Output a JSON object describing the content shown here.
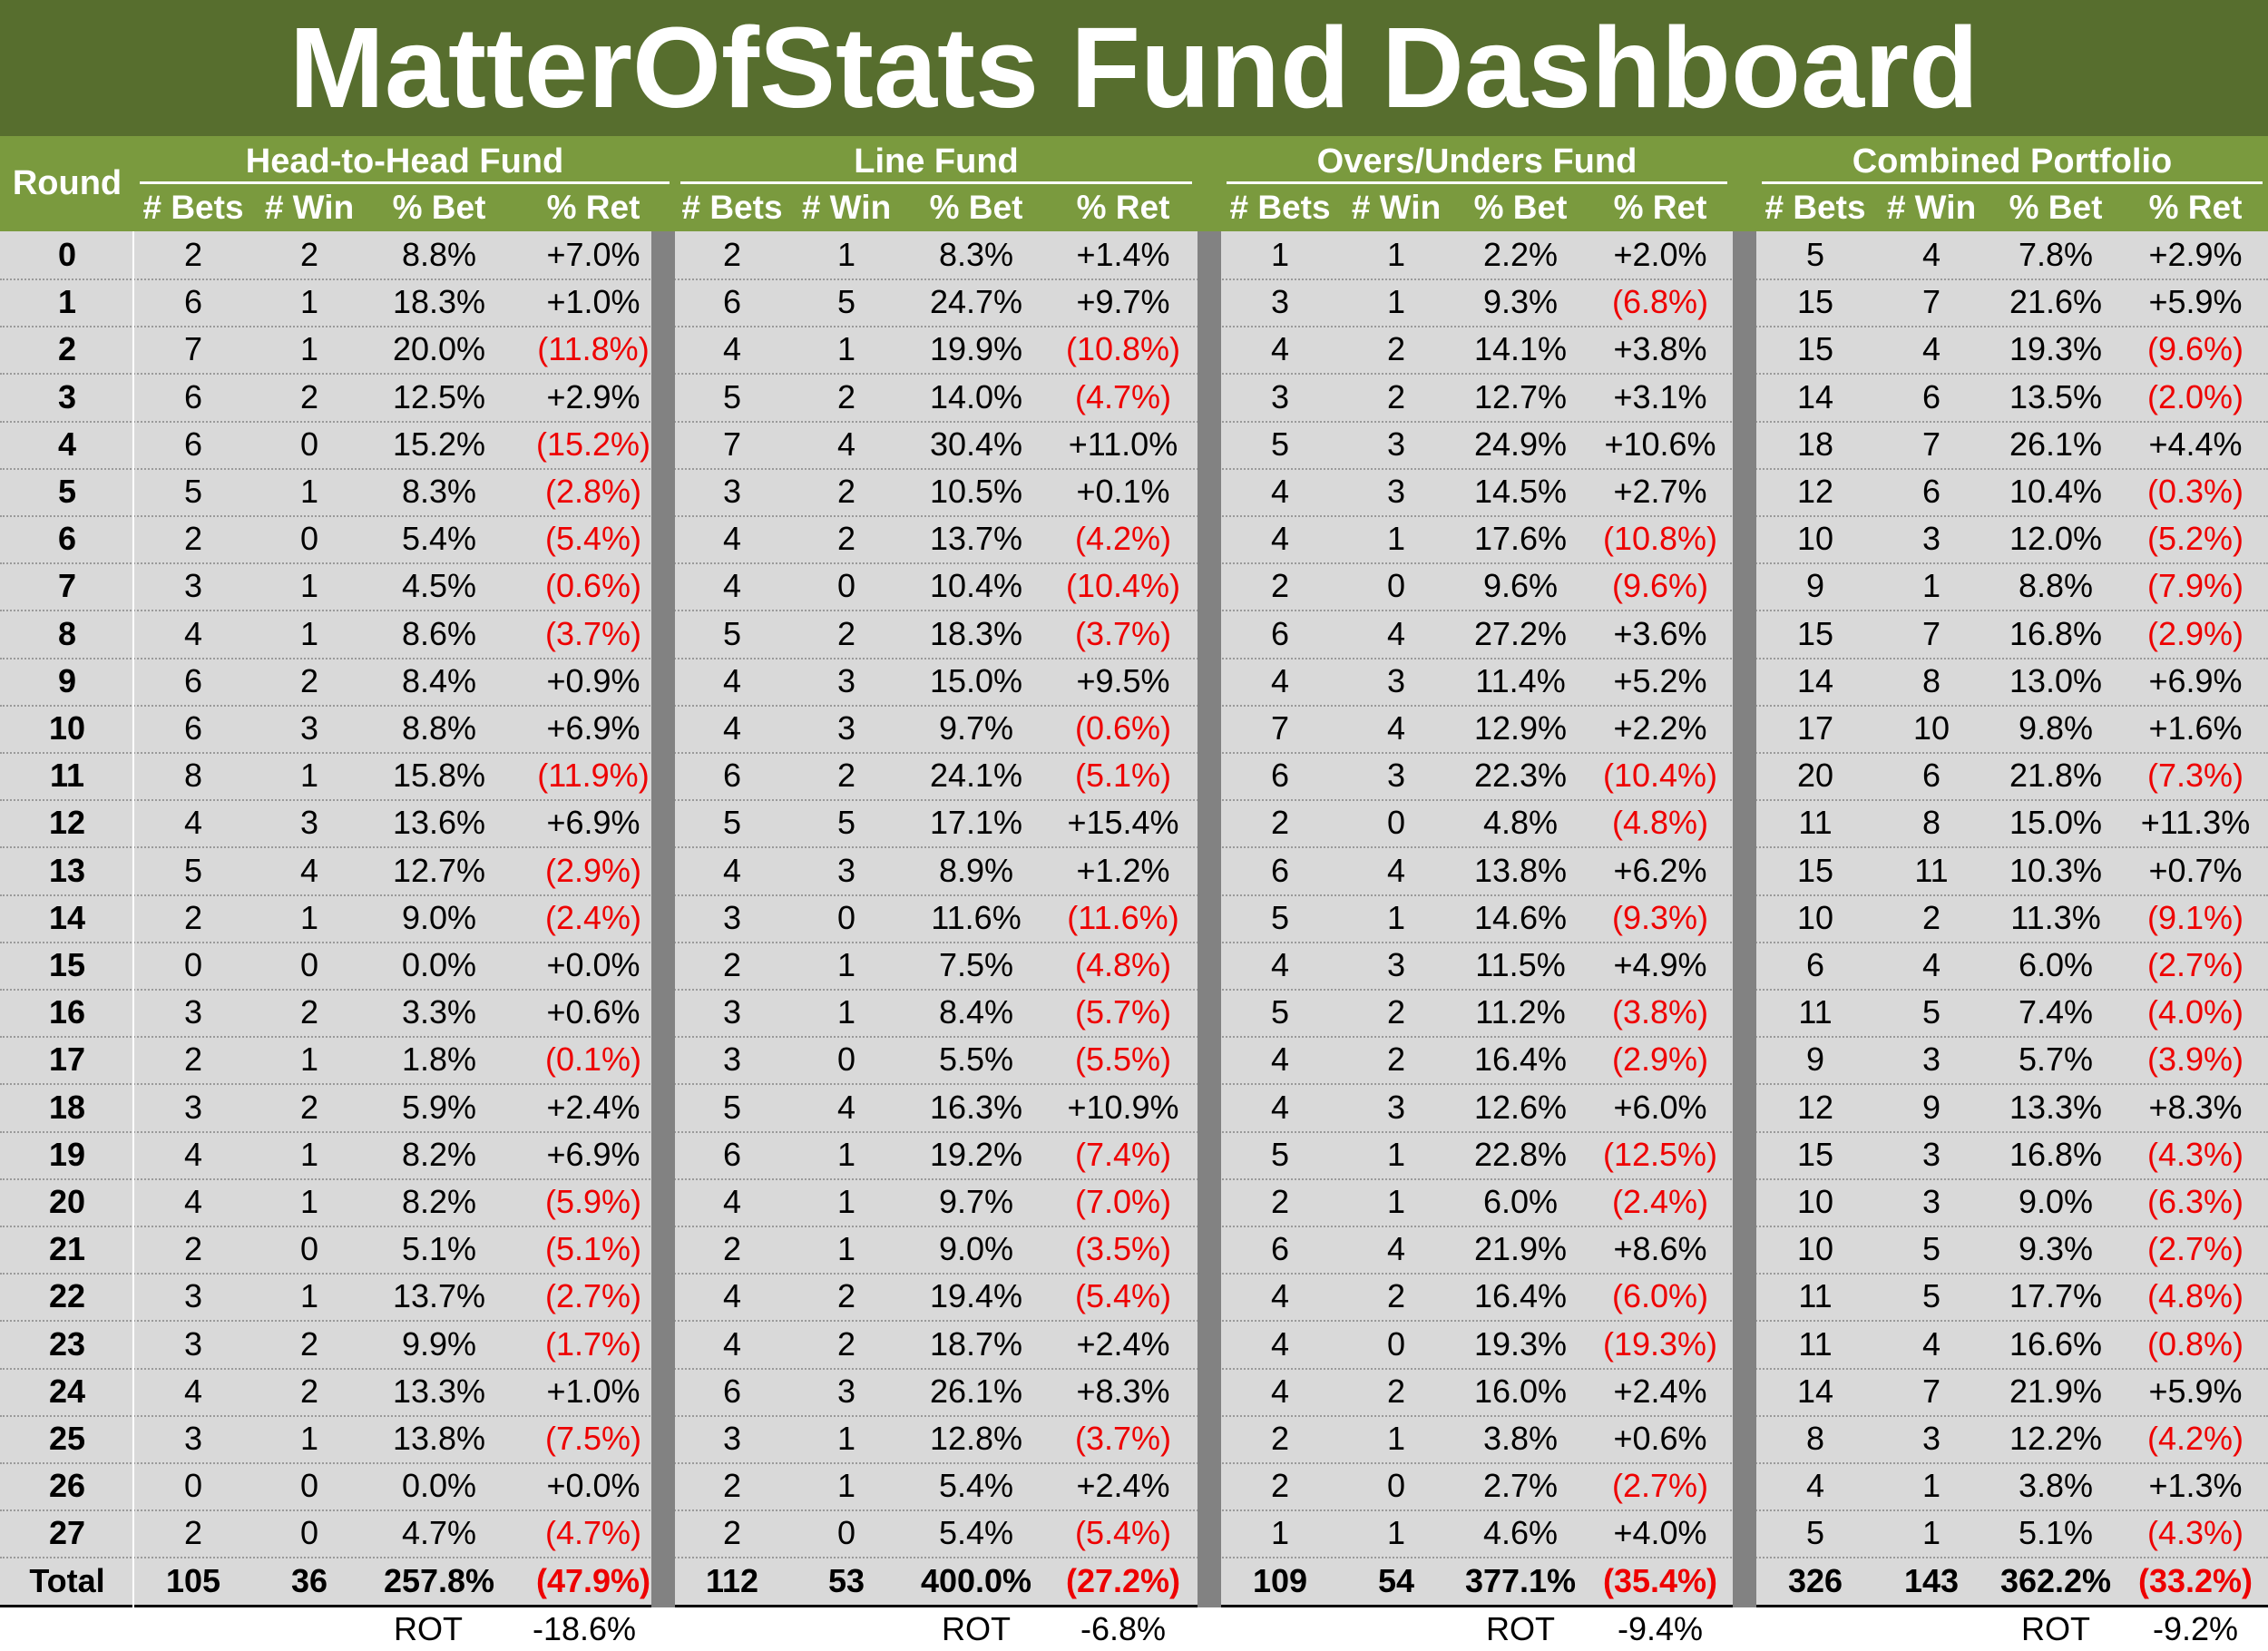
{
  "title": "MatterOfStats Fund Dashboard",
  "round_label": "Round",
  "groups": [
    {
      "name": "Head-to-Head Fund"
    },
    {
      "name": "Line Fund"
    },
    {
      "name": "Overs/Unders Fund"
    },
    {
      "name": "Combined Portfolio"
    }
  ],
  "subheaders": [
    "# Bets",
    "# Win",
    "% Bet",
    "% Ret"
  ],
  "rows": [
    {
      "round": "0",
      "cells": [
        "2",
        "2",
        "8.8%",
        "+7.0%",
        "2",
        "1",
        "8.3%",
        "+1.4%",
        "1",
        "1",
        "2.2%",
        "+2.0%",
        "5",
        "4",
        "7.8%",
        "+2.9%"
      ]
    },
    {
      "round": "1",
      "cells": [
        "6",
        "1",
        "18.3%",
        "+1.0%",
        "6",
        "5",
        "24.7%",
        "+9.7%",
        "3",
        "1",
        "9.3%",
        "(6.8%)",
        "15",
        "7",
        "21.6%",
        "+5.9%"
      ]
    },
    {
      "round": "2",
      "cells": [
        "7",
        "1",
        "20.0%",
        "(11.8%)",
        "4",
        "1",
        "19.9%",
        "(10.8%)",
        "4",
        "2",
        "14.1%",
        "+3.8%",
        "15",
        "4",
        "19.3%",
        "(9.6%)"
      ]
    },
    {
      "round": "3",
      "cells": [
        "6",
        "2",
        "12.5%",
        "+2.9%",
        "5",
        "2",
        "14.0%",
        "(4.7%)",
        "3",
        "2",
        "12.7%",
        "+3.1%",
        "14",
        "6",
        "13.5%",
        "(2.0%)"
      ]
    },
    {
      "round": "4",
      "cells": [
        "6",
        "0",
        "15.2%",
        "(15.2%)",
        "7",
        "4",
        "30.4%",
        "+11.0%",
        "5",
        "3",
        "24.9%",
        "+10.6%",
        "18",
        "7",
        "26.1%",
        "+4.4%"
      ]
    },
    {
      "round": "5",
      "cells": [
        "5",
        "1",
        "8.3%",
        "(2.8%)",
        "3",
        "2",
        "10.5%",
        "+0.1%",
        "4",
        "3",
        "14.5%",
        "+2.7%",
        "12",
        "6",
        "10.4%",
        "(0.3%)"
      ]
    },
    {
      "round": "6",
      "cells": [
        "2",
        "0",
        "5.4%",
        "(5.4%)",
        "4",
        "2",
        "13.7%",
        "(4.2%)",
        "4",
        "1",
        "17.6%",
        "(10.8%)",
        "10",
        "3",
        "12.0%",
        "(5.2%)"
      ]
    },
    {
      "round": "7",
      "cells": [
        "3",
        "1",
        "4.5%",
        "(0.6%)",
        "4",
        "0",
        "10.4%",
        "(10.4%)",
        "2",
        "0",
        "9.6%",
        "(9.6%)",
        "9",
        "1",
        "8.8%",
        "(7.9%)"
      ]
    },
    {
      "round": "8",
      "cells": [
        "4",
        "1",
        "8.6%",
        "(3.7%)",
        "5",
        "2",
        "18.3%",
        "(3.7%)",
        "6",
        "4",
        "27.2%",
        "+3.6%",
        "15",
        "7",
        "16.8%",
        "(2.9%)"
      ]
    },
    {
      "round": "9",
      "cells": [
        "6",
        "2",
        "8.4%",
        "+0.9%",
        "4",
        "3",
        "15.0%",
        "+9.5%",
        "4",
        "3",
        "11.4%",
        "+5.2%",
        "14",
        "8",
        "13.0%",
        "+6.9%"
      ]
    },
    {
      "round": "10",
      "cells": [
        "6",
        "3",
        "8.8%",
        "+6.9%",
        "4",
        "3",
        "9.7%",
        "(0.6%)",
        "7",
        "4",
        "12.9%",
        "+2.2%",
        "17",
        "10",
        "9.8%",
        "+1.6%"
      ]
    },
    {
      "round": "11",
      "cells": [
        "8",
        "1",
        "15.8%",
        "(11.9%)",
        "6",
        "2",
        "24.1%",
        "(5.1%)",
        "6",
        "3",
        "22.3%",
        "(10.4%)",
        "20",
        "6",
        "21.8%",
        "(7.3%)"
      ]
    },
    {
      "round": "12",
      "cells": [
        "4",
        "3",
        "13.6%",
        "+6.9%",
        "5",
        "5",
        "17.1%",
        "+15.4%",
        "2",
        "0",
        "4.8%",
        "(4.8%)",
        "11",
        "8",
        "15.0%",
        "+11.3%"
      ]
    },
    {
      "round": "13",
      "cells": [
        "5",
        "4",
        "12.7%",
        "(2.9%)",
        "4",
        "3",
        "8.9%",
        "+1.2%",
        "6",
        "4",
        "13.8%",
        "+6.2%",
        "15",
        "11",
        "10.3%",
        "+0.7%"
      ]
    },
    {
      "round": "14",
      "cells": [
        "2",
        "1",
        "9.0%",
        "(2.4%)",
        "3",
        "0",
        "11.6%",
        "(11.6%)",
        "5",
        "1",
        "14.6%",
        "(9.3%)",
        "10",
        "2",
        "11.3%",
        "(9.1%)"
      ]
    },
    {
      "round": "15",
      "cells": [
        "0",
        "0",
        "0.0%",
        "+0.0%",
        "2",
        "1",
        "7.5%",
        "(4.8%)",
        "4",
        "3",
        "11.5%",
        "+4.9%",
        "6",
        "4",
        "6.0%",
        "(2.7%)"
      ]
    },
    {
      "round": "16",
      "cells": [
        "3",
        "2",
        "3.3%",
        "+0.6%",
        "3",
        "1",
        "8.4%",
        "(5.7%)",
        "5",
        "2",
        "11.2%",
        "(3.8%)",
        "11",
        "5",
        "7.4%",
        "(4.0%)"
      ]
    },
    {
      "round": "17",
      "cells": [
        "2",
        "1",
        "1.8%",
        "(0.1%)",
        "3",
        "0",
        "5.5%",
        "(5.5%)",
        "4",
        "2",
        "16.4%",
        "(2.9%)",
        "9",
        "3",
        "5.7%",
        "(3.9%)"
      ]
    },
    {
      "round": "18",
      "cells": [
        "3",
        "2",
        "5.9%",
        "+2.4%",
        "5",
        "4",
        "16.3%",
        "+10.9%",
        "4",
        "3",
        "12.6%",
        "+6.0%",
        "12",
        "9",
        "13.3%",
        "+8.3%"
      ]
    },
    {
      "round": "19",
      "cells": [
        "4",
        "1",
        "8.2%",
        "+6.9%",
        "6",
        "1",
        "19.2%",
        "(7.4%)",
        "5",
        "1",
        "22.8%",
        "(12.5%)",
        "15",
        "3",
        "16.8%",
        "(4.3%)"
      ]
    },
    {
      "round": "20",
      "cells": [
        "4",
        "1",
        "8.2%",
        "(5.9%)",
        "4",
        "1",
        "9.7%",
        "(7.0%)",
        "2",
        "1",
        "6.0%",
        "(2.4%)",
        "10",
        "3",
        "9.0%",
        "(6.3%)"
      ]
    },
    {
      "round": "21",
      "cells": [
        "2",
        "0",
        "5.1%",
        "(5.1%)",
        "2",
        "1",
        "9.0%",
        "(3.5%)",
        "6",
        "4",
        "21.9%",
        "+8.6%",
        "10",
        "5",
        "9.3%",
        "(2.7%)"
      ]
    },
    {
      "round": "22",
      "cells": [
        "3",
        "1",
        "13.7%",
        "(2.7%)",
        "4",
        "2",
        "19.4%",
        "(5.4%)",
        "4",
        "2",
        "16.4%",
        "(6.0%)",
        "11",
        "5",
        "17.7%",
        "(4.8%)"
      ]
    },
    {
      "round": "23",
      "cells": [
        "3",
        "2",
        "9.9%",
        "(1.7%)",
        "4",
        "2",
        "18.7%",
        "+2.4%",
        "4",
        "0",
        "19.3%",
        "(19.3%)",
        "11",
        "4",
        "16.6%",
        "(0.8%)"
      ]
    },
    {
      "round": "24",
      "cells": [
        "4",
        "2",
        "13.3%",
        "+1.0%",
        "6",
        "3",
        "26.1%",
        "+8.3%",
        "4",
        "2",
        "16.0%",
        "+2.4%",
        "14",
        "7",
        "21.9%",
        "+5.9%"
      ]
    },
    {
      "round": "25",
      "cells": [
        "3",
        "1",
        "13.8%",
        "(7.5%)",
        "3",
        "1",
        "12.8%",
        "(3.7%)",
        "2",
        "1",
        "3.8%",
        "+0.6%",
        "8",
        "3",
        "12.2%",
        "(4.2%)"
      ]
    },
    {
      "round": "26",
      "cells": [
        "0",
        "0",
        "0.0%",
        "+0.0%",
        "2",
        "1",
        "5.4%",
        "+2.4%",
        "2",
        "0",
        "2.7%",
        "(2.7%)",
        "4",
        "1",
        "3.8%",
        "+1.3%"
      ]
    },
    {
      "round": "27",
      "cells": [
        "2",
        "0",
        "4.7%",
        "(4.7%)",
        "2",
        "0",
        "5.4%",
        "(5.4%)",
        "1",
        "1",
        "4.6%",
        "+4.0%",
        "5",
        "1",
        "5.1%",
        "(4.3%)"
      ]
    }
  ],
  "total": {
    "round": "Total",
    "cells": [
      "105",
      "36",
      "257.8%",
      "(47.9%)",
      "112",
      "53",
      "400.0%",
      "(27.2%)",
      "109",
      "54",
      "377.1%",
      "(35.4%)",
      "326",
      "143",
      "362.2%",
      "(33.2%)"
    ]
  },
  "rot_label": "ROT",
  "rot_values": [
    "-18.6%",
    "-6.8%",
    "-9.4%",
    "-9.2%"
  ],
  "colors": {
    "title_bg": "#576e2e",
    "header_bg": "#7a9a3e",
    "negative": "#ee0000",
    "separator": "#828282",
    "row_bg": "#d9d9d9"
  }
}
